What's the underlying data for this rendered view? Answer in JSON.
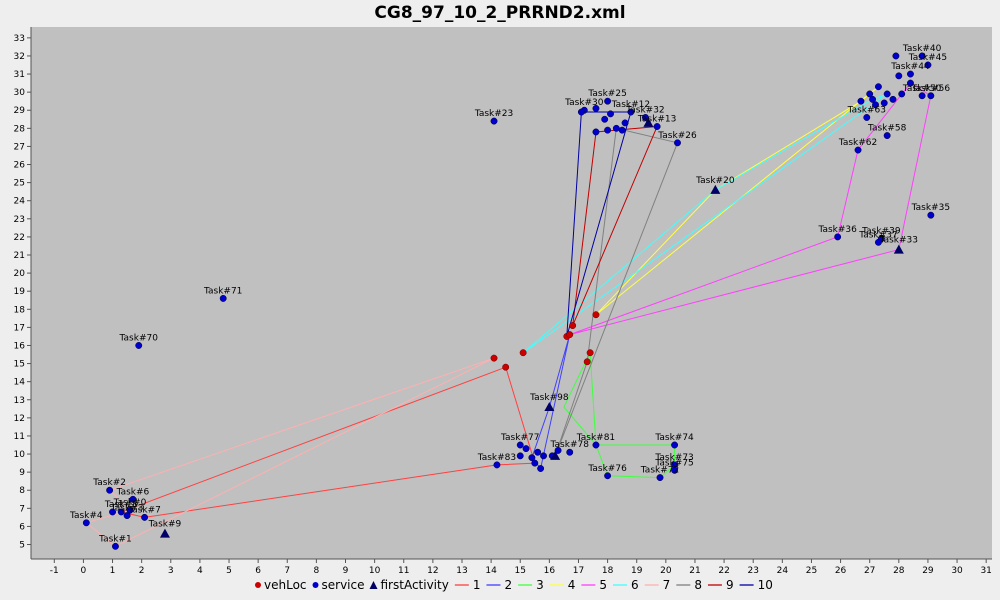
{
  "chart_data": {
    "type": "scatter",
    "title": "CG8_97_10_2_PRRND2.xml",
    "xlim": [
      -1.8,
      31.2
    ],
    "ylim": [
      4.2,
      33.6
    ],
    "x_ticks": [
      -1,
      0,
      1,
      2,
      3,
      4,
      5,
      6,
      7,
      8,
      9,
      10,
      11,
      12,
      13,
      14,
      15,
      16,
      17,
      18,
      19,
      20,
      21,
      22,
      23,
      24,
      25,
      26,
      27,
      28,
      29,
      30,
      31
    ],
    "y_ticks": [
      5,
      6,
      7,
      8,
      9,
      10,
      11,
      12,
      13,
      14,
      15,
      16,
      17,
      18,
      19,
      20,
      21,
      22,
      23,
      24,
      25,
      26,
      27,
      28,
      29,
      30,
      31,
      32,
      33
    ],
    "grid": false,
    "legend_position": "bottom",
    "colors": {
      "plot_background": "#c0c0c0",
      "vehLoc": "#cc0000",
      "service": "#0000cc",
      "firstActivity": "#000066",
      "route_1": "#ff4040",
      "route_2": "#4040ff",
      "route_3": "#40ff40",
      "route_4": "#ffff40",
      "route_5": "#ff40ff",
      "route_6": "#40ffff",
      "route_7": "#ffb0b0",
      "route_8": "#808080",
      "route_9": "#c00000",
      "route_10": "#0000a0"
    },
    "legend": [
      {
        "label": "vehLoc",
        "kind": "circle",
        "color_key": "vehLoc"
      },
      {
        "label": "service",
        "kind": "circle",
        "color_key": "service"
      },
      {
        "label": "firstActivity",
        "kind": "triangle",
        "color_key": "firstActivity"
      },
      {
        "label": "1",
        "kind": "line",
        "color_key": "route_1"
      },
      {
        "label": "2",
        "kind": "line",
        "color_key": "route_2"
      },
      {
        "label": "3",
        "kind": "line",
        "color_key": "route_3"
      },
      {
        "label": "4",
        "kind": "line",
        "color_key": "route_4"
      },
      {
        "label": "5",
        "kind": "line",
        "color_key": "route_5"
      },
      {
        "label": "6",
        "kind": "line",
        "color_key": "route_6"
      },
      {
        "label": "7",
        "kind": "line",
        "color_key": "route_7"
      },
      {
        "label": "8",
        "kind": "line",
        "color_key": "route_8"
      },
      {
        "label": "9",
        "kind": "line",
        "color_key": "route_9"
      },
      {
        "label": "10",
        "kind": "line",
        "color_key": "route_10"
      }
    ],
    "veh_locations": [
      [
        14.1,
        15.3
      ],
      [
        14.5,
        14.8
      ],
      [
        15.1,
        15.6
      ],
      [
        16.6,
        16.5
      ],
      [
        16.7,
        16.6
      ],
      [
        16.8,
        17.1
      ],
      [
        17.3,
        15.1
      ],
      [
        17.4,
        15.6
      ],
      [
        17.6,
        17.7
      ]
    ],
    "services": [
      {
        "label": "Task#1",
        "x": 1.1,
        "y": 4.9
      },
      {
        "label": "Task#2",
        "x": 0.9,
        "y": 8.0
      },
      {
        "label": "Task#4",
        "x": 0.1,
        "y": 6.2
      },
      {
        "label": "Task#6",
        "x": 1.7,
        "y": 7.5
      },
      {
        "label": "Task#7",
        "x": 2.1,
        "y": 6.5
      },
      {
        "label": "Task#0",
        "x": 1.6,
        "y": 6.9
      },
      {
        "label": "Task#8",
        "x": 1.3,
        "y": 6.8
      },
      {
        "label": "Task#3",
        "x": 1.5,
        "y": 6.6
      },
      {
        "label": "",
        "x": 1.0,
        "y": 6.8
      },
      {
        "label": "Task#70",
        "x": 1.9,
        "y": 16.0
      },
      {
        "label": "Task#71",
        "x": 4.8,
        "y": 18.6
      },
      {
        "label": "Task#23",
        "x": 14.1,
        "y": 28.4
      },
      {
        "label": "Task#26",
        "x": 20.4,
        "y": 27.2
      },
      {
        "label": "Task#25",
        "x": 18.0,
        "y": 29.5
      },
      {
        "label": "Task#30",
        "x": 17.2,
        "y": 29.0
      },
      {
        "label": "Task#12",
        "x": 18.8,
        "y": 28.9
      },
      {
        "label": "Task#32",
        "x": 19.3,
        "y": 28.6
      },
      {
        "label": "Task#13",
        "x": 19.7,
        "y": 28.1
      },
      {
        "label": "",
        "x": 17.6,
        "y": 29.1
      },
      {
        "label": "",
        "x": 17.9,
        "y": 28.5
      },
      {
        "label": "",
        "x": 18.1,
        "y": 28.8
      },
      {
        "label": "",
        "x": 18.3,
        "y": 28.0
      },
      {
        "label": "",
        "x": 18.0,
        "y": 27.9
      },
      {
        "label": "",
        "x": 17.6,
        "y": 27.8
      },
      {
        "label": "",
        "x": 18.6,
        "y": 28.3
      },
      {
        "label": "",
        "x": 18.5,
        "y": 27.9
      },
      {
        "label": "",
        "x": 17.1,
        "y": 28.9
      },
      {
        "label": "Task#63",
        "x": 26.9,
        "y": 28.6
      },
      {
        "label": "Task#58",
        "x": 27.6,
        "y": 27.6
      },
      {
        "label": "Task#62",
        "x": 26.6,
        "y": 26.8
      },
      {
        "label": "Task#36",
        "x": 25.9,
        "y": 22.0
      },
      {
        "label": "Task#39",
        "x": 27.4,
        "y": 21.9
      },
      {
        "label": "Task#37",
        "x": 27.3,
        "y": 21.7
      },
      {
        "label": "Task#35",
        "x": 29.1,
        "y": 23.2
      },
      {
        "label": "Task#40",
        "x": 28.8,
        "y": 32.0
      },
      {
        "label": "Task#45",
        "x": 29.0,
        "y": 31.5
      },
      {
        "label": "Task#44",
        "x": 28.4,
        "y": 31.0
      },
      {
        "label": "Task#56",
        "x": 29.1,
        "y": 29.8
      },
      {
        "label": "Task#50",
        "x": 28.8,
        "y": 29.8
      },
      {
        "label": "",
        "x": 27.9,
        "y": 32.0
      },
      {
        "label": "",
        "x": 28.0,
        "y": 30.9
      },
      {
        "label": "",
        "x": 28.4,
        "y": 30.5
      },
      {
        "label": "",
        "x": 27.3,
        "y": 30.3
      },
      {
        "label": "",
        "x": 27.0,
        "y": 29.9
      },
      {
        "label": "",
        "x": 26.7,
        "y": 29.5
      },
      {
        "label": "",
        "x": 27.5,
        "y": 29.4
      },
      {
        "label": "",
        "x": 27.2,
        "y": 29.3
      },
      {
        "label": "",
        "x": 27.8,
        "y": 29.6
      },
      {
        "label": "",
        "x": 28.1,
        "y": 29.9
      },
      {
        "label": "",
        "x": 27.6,
        "y": 29.9
      },
      {
        "label": "",
        "x": 27.1,
        "y": 29.6
      },
      {
        "label": "Task#81",
        "x": 17.6,
        "y": 10.5
      },
      {
        "label": "Task#74",
        "x": 20.3,
        "y": 10.5
      },
      {
        "label": "Task#73",
        "x": 20.3,
        "y": 9.4
      },
      {
        "label": "Task#75",
        "x": 20.3,
        "y": 9.1
      },
      {
        "label": "Task#72",
        "x": 19.8,
        "y": 8.7
      },
      {
        "label": "Task#76",
        "x": 18.0,
        "y": 8.8
      },
      {
        "label": "Task#77",
        "x": 15.0,
        "y": 10.5
      },
      {
        "label": "Task#78",
        "x": 16.7,
        "y": 10.1
      },
      {
        "label": "Task#83",
        "x": 14.2,
        "y": 9.4
      },
      {
        "label": "",
        "x": 15.2,
        "y": 10.3
      },
      {
        "label": "",
        "x": 15.6,
        "y": 10.1
      },
      {
        "label": "",
        "x": 15.8,
        "y": 9.9
      },
      {
        "label": "",
        "x": 15.4,
        "y": 9.8
      },
      {
        "label": "",
        "x": 15.5,
        "y": 9.5
      },
      {
        "label": "",
        "x": 15.7,
        "y": 9.2
      },
      {
        "label": "",
        "x": 16.1,
        "y": 9.9
      },
      {
        "label": "",
        "x": 16.3,
        "y": 10.2
      },
      {
        "label": "",
        "x": 15.0,
        "y": 9.9
      }
    ],
    "first_activities": [
      {
        "label": "Task#9",
        "x": 2.8,
        "y": 5.6
      },
      {
        "label": "Task#98",
        "x": 16.0,
        "y": 12.6
      },
      {
        "label": "Task#20",
        "x": 21.7,
        "y": 24.6
      },
      {
        "label": "Task#33",
        "x": 28.0,
        "y": 21.3
      },
      {
        "label": "",
        "x": 19.4,
        "y": 28.3
      },
      {
        "label": "",
        "x": 16.2,
        "y": 9.9
      }
    ],
    "routes": [
      {
        "name": "1",
        "points": [
          [
            14.5,
            14.8
          ],
          [
            1.3,
            6.8
          ],
          [
            2.1,
            6.5
          ],
          [
            14.2,
            9.4
          ],
          [
            15.5,
            9.5
          ],
          [
            14.5,
            14.8
          ]
        ]
      },
      {
        "name": "2",
        "points": [
          [
            16.7,
            16.6
          ],
          [
            16.0,
            12.6
          ],
          [
            15.4,
            9.8
          ],
          [
            15.7,
            9.2
          ],
          [
            16.7,
            16.6
          ]
        ]
      },
      {
        "name": "3",
        "points": [
          [
            17.4,
            15.6
          ],
          [
            17.6,
            10.5
          ],
          [
            20.3,
            10.5
          ],
          [
            20.3,
            9.4
          ],
          [
            19.8,
            8.7
          ],
          [
            18.0,
            8.8
          ],
          [
            17.6,
            10.5
          ],
          [
            16.5,
            12.6
          ],
          [
            17.4,
            15.6
          ]
        ]
      },
      {
        "name": "4",
        "points": [
          [
            17.6,
            17.7
          ],
          [
            21.7,
            24.6
          ],
          [
            26.7,
            29.5
          ],
          [
            27.0,
            29.9
          ],
          [
            27.3,
            30.3
          ],
          [
            17.6,
            17.7
          ]
        ]
      },
      {
        "name": "5",
        "points": [
          [
            16.7,
            16.6
          ],
          [
            28.0,
            21.3
          ],
          [
            29.1,
            29.8
          ],
          [
            28.4,
            30.5
          ],
          [
            26.6,
            26.8
          ],
          [
            25.9,
            22.0
          ],
          [
            16.7,
            16.6
          ]
        ]
      },
      {
        "name": "6",
        "points": [
          [
            15.1,
            15.6
          ],
          [
            21.7,
            24.6
          ],
          [
            27.1,
            29.6
          ],
          [
            27.6,
            29.9
          ],
          [
            15.1,
            15.6
          ]
        ]
      },
      {
        "name": "7",
        "points": [
          [
            14.1,
            15.3
          ],
          [
            1.1,
            4.9
          ],
          [
            0.1,
            6.2
          ],
          [
            1.6,
            6.9
          ],
          [
            0.9,
            8.0
          ],
          [
            14.1,
            15.3
          ]
        ]
      },
      {
        "name": "8",
        "points": [
          [
            17.3,
            15.1
          ],
          [
            18.3,
            28.0
          ],
          [
            20.4,
            27.2
          ],
          [
            16.2,
            9.9
          ],
          [
            17.3,
            15.1
          ]
        ]
      },
      {
        "name": "9",
        "points": [
          [
            16.8,
            17.1
          ],
          [
            17.6,
            27.8
          ],
          [
            19.7,
            28.1
          ],
          [
            16.8,
            17.1
          ]
        ]
      },
      {
        "name": "10",
        "points": [
          [
            16.6,
            16.5
          ],
          [
            17.1,
            28.9
          ],
          [
            18.8,
            28.9
          ],
          [
            16.6,
            16.5
          ]
        ]
      }
    ]
  }
}
